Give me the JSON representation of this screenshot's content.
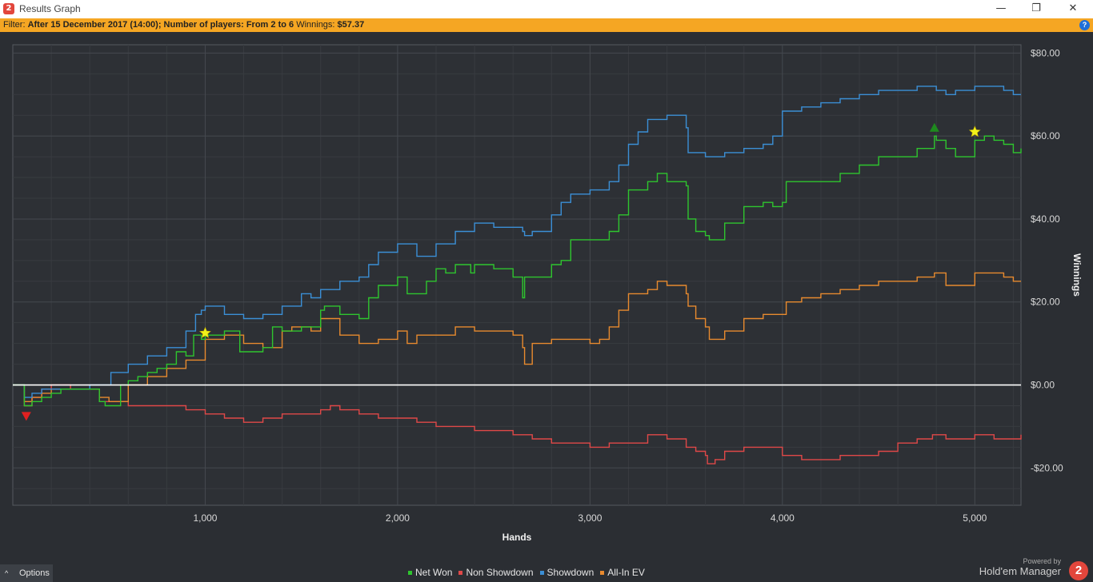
{
  "window": {
    "title": "Results Graph",
    "app_icon_glyph": "2",
    "minimize_glyph": "—",
    "restore_glyph": "❐",
    "close_glyph": "✕"
  },
  "filter": {
    "label": "Filter:",
    "text": "After 15 December 2017 (14:00); Number of players: From 2 to 6",
    "winnings_label": "Winnings:",
    "winnings_value": "$57.37",
    "help_icon": "?"
  },
  "footer": {
    "options_label": "Options",
    "options_icon": "^",
    "powered_by": "Powered by",
    "brand": "Hold'em Manager",
    "brand_logo": "2"
  },
  "colors": {
    "net_won": "#2ec52e",
    "non_showdown": "#e04848",
    "showdown": "#3b8fd6",
    "all_in_ev": "#e88a2e",
    "zero_line": "#ffffff",
    "grid": "#45494f"
  },
  "chart_data": {
    "type": "line",
    "title": "",
    "xlabel": "Hands",
    "ylabel": "Winnings",
    "xlim": [
      0,
      5240
    ],
    "ylim": [
      -29,
      82
    ],
    "x_ticks": [
      1000,
      2000,
      3000,
      4000,
      5000
    ],
    "x_tick_labels": [
      "1,000",
      "2,000",
      "3,000",
      "4,000",
      "5,000"
    ],
    "y_ticks": [
      -20,
      0,
      20,
      40,
      60,
      80
    ],
    "y_tick_labels": [
      "-$20.00",
      "$0.00",
      "$20.00",
      "$40.00",
      "$60.00",
      "$80.00"
    ],
    "grid": true,
    "legend_position": "bottom",
    "series": [
      {
        "name": "Net Won",
        "x": [
          0,
          50,
          60,
          100,
          150,
          200,
          250,
          300,
          350,
          400,
          450,
          480,
          520,
          560,
          600,
          650,
          700,
          750,
          800,
          850,
          900,
          940,
          980,
          1000,
          1100,
          1180,
          1200,
          1250,
          1300,
          1350,
          1400,
          1450,
          1500,
          1600,
          1620,
          1700,
          1800,
          1850,
          1900,
          2000,
          2050,
          2100,
          2150,
          2200,
          2250,
          2300,
          2380,
          2400,
          2500,
          2600,
          2650,
          2660,
          2700,
          2800,
          2850,
          2900,
          3000,
          3050,
          3100,
          3150,
          3200,
          3250,
          3300,
          3350,
          3400,
          3500,
          3510,
          3550,
          3600,
          3620,
          3700,
          3800,
          3900,
          3950,
          4000,
          4020,
          4100,
          4200,
          4300,
          4400,
          4500,
          4600,
          4700,
          4790,
          4800,
          4850,
          4900,
          5000,
          5050,
          5100,
          5150,
          5200,
          5240
        ],
        "values": [
          0,
          0,
          -5,
          -4,
          -3,
          -2,
          -1,
          -1,
          -1,
          -1,
          -4,
          -5,
          -5,
          0,
          1,
          2,
          3,
          4,
          5,
          8,
          7,
          12,
          11,
          12,
          13,
          8,
          8,
          8,
          9,
          14,
          13,
          13,
          14,
          18,
          19,
          17,
          16,
          21,
          24,
          26,
          22,
          22,
          25,
          28,
          27,
          29,
          27,
          29,
          28,
          26,
          21,
          26,
          26,
          29,
          30,
          35,
          35,
          35,
          37,
          41,
          47,
          47,
          49,
          51,
          49,
          48,
          40,
          37,
          36,
          35,
          39,
          43,
          44,
          43,
          44,
          49,
          49,
          49,
          51,
          53,
          55,
          55,
          57,
          60,
          59,
          57,
          55,
          59,
          60,
          59,
          58,
          56,
          57
        ]
      },
      {
        "name": "Non Showdown",
        "x": [
          0,
          50,
          60,
          100,
          150,
          200,
          250,
          300,
          400,
          450,
          500,
          550,
          600,
          700,
          800,
          900,
          1000,
          1100,
          1150,
          1200,
          1300,
          1400,
          1500,
          1550,
          1600,
          1650,
          1700,
          1800,
          1900,
          2000,
          2100,
          2200,
          2300,
          2400,
          2500,
          2600,
          2650,
          2700,
          2800,
          2900,
          3000,
          3100,
          3200,
          3300,
          3400,
          3500,
          3550,
          3600,
          3610,
          3650,
          3700,
          3800,
          3900,
          4000,
          4100,
          4200,
          4300,
          4400,
          4500,
          4600,
          4700,
          4780,
          4800,
          4850,
          4900,
          5000,
          5100,
          5200,
          5240
        ],
        "values": [
          0,
          0,
          -5,
          -3,
          -1,
          0,
          0,
          -1,
          -1,
          -4,
          -4,
          -4,
          -5,
          -5,
          -5,
          -6,
          -7,
          -8,
          -8,
          -9,
          -8,
          -7,
          -7,
          -7,
          -6,
          -5,
          -6,
          -7,
          -8,
          -8,
          -9,
          -10,
          -10,
          -11,
          -11,
          -12,
          -12,
          -13,
          -14,
          -14,
          -15,
          -14,
          -14,
          -12,
          -13,
          -15,
          -16,
          -17,
          -19,
          -18,
          -16,
          -15,
          -15,
          -17,
          -18,
          -18,
          -17,
          -17,
          -16,
          -14,
          -13,
          -12,
          -12,
          -13,
          -13,
          -12,
          -13,
          -13,
          -12
        ]
      },
      {
        "name": "Showdown",
        "x": [
          0,
          50,
          60,
          100,
          150,
          200,
          300,
          400,
          450,
          500,
          510,
          600,
          700,
          800,
          900,
          950,
          980,
          1000,
          1100,
          1200,
          1300,
          1400,
          1500,
          1550,
          1600,
          1700,
          1800,
          1850,
          1900,
          2000,
          2100,
          2200,
          2300,
          2400,
          2500,
          2600,
          2650,
          2660,
          2700,
          2800,
          2850,
          2900,
          3000,
          3100,
          3150,
          3200,
          3250,
          3300,
          3400,
          3500,
          3510,
          3600,
          3700,
          3800,
          3900,
          3950,
          4000,
          4100,
          4200,
          4300,
          4400,
          4500,
          4600,
          4700,
          4800,
          4850,
          4900,
          5000,
          5100,
          5150,
          5200,
          5240
        ],
        "values": [
          0,
          0,
          -3,
          -2,
          -1,
          -1,
          -1,
          0,
          0,
          0,
          3,
          5,
          7,
          9,
          13,
          17,
          18,
          19,
          17,
          16,
          17,
          19,
          22,
          21,
          23,
          25,
          26,
          29,
          32,
          34,
          31,
          34,
          37,
          39,
          38,
          38,
          37,
          36,
          37,
          41,
          44,
          46,
          47,
          49,
          53,
          58,
          61,
          64,
          65,
          62,
          56,
          55,
          56,
          57,
          58,
          60,
          66,
          67,
          68,
          69,
          70,
          71,
          71,
          72,
          71,
          70,
          71,
          72,
          72,
          71,
          70,
          70
        ]
      },
      {
        "name": "All-In EV",
        "x": [
          0,
          50,
          60,
          100,
          150,
          200,
          250,
          300,
          400,
          450,
          500,
          550,
          600,
          700,
          800,
          900,
          1000,
          1100,
          1150,
          1200,
          1300,
          1400,
          1450,
          1500,
          1550,
          1600,
          1700,
          1800,
          1900,
          2000,
          2050,
          2100,
          2200,
          2300,
          2400,
          2500,
          2600,
          2650,
          2660,
          2700,
          2800,
          2900,
          3000,
          3050,
          3100,
          3150,
          3200,
          3300,
          3350,
          3400,
          3500,
          3510,
          3550,
          3600,
          3620,
          3700,
          3800,
          3900,
          4000,
          4020,
          4100,
          4200,
          4300,
          4400,
          4500,
          4600,
          4700,
          4790,
          4800,
          4850,
          4900,
          5000,
          5100,
          5150,
          5200,
          5240
        ],
        "values": [
          0,
          0,
          -4,
          -3,
          -2,
          -1,
          -1,
          -1,
          -1,
          -3,
          -4,
          -4,
          0,
          2,
          4,
          6,
          11,
          12,
          12,
          10,
          9,
          13,
          14,
          14,
          13,
          16,
          12,
          10,
          11,
          13,
          10,
          12,
          12,
          14,
          13,
          13,
          12,
          9,
          5,
          10,
          11,
          11,
          10,
          11,
          14,
          18,
          22,
          23,
          25,
          24,
          22,
          19,
          16,
          14,
          11,
          13,
          16,
          17,
          17,
          20,
          21,
          22,
          23,
          24,
          25,
          25,
          26,
          27,
          27,
          24,
          24,
          27,
          27,
          26,
          25,
          25
        ]
      }
    ],
    "markers": [
      {
        "type": "star",
        "x": 1000,
        "y": 12.5
      },
      {
        "type": "star",
        "x": 5000,
        "y": 61
      },
      {
        "type": "max-triangle",
        "x": 4790,
        "y": 62
      },
      {
        "type": "min-triangle",
        "x": 70,
        "y": -7.5
      }
    ]
  }
}
